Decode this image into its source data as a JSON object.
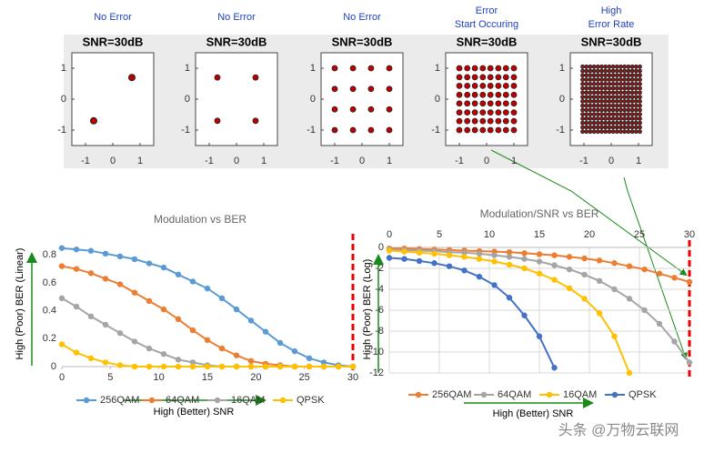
{
  "chart_data": [
    {
      "type": "scatter",
      "annotation": [
        "No Error"
      ],
      "title": "SNR=30dB",
      "x": [
        -0.7,
        0.7
      ],
      "y": [
        -0.7,
        0.7
      ],
      "color": "#c00000",
      "xlim": [
        -1.5,
        1.5
      ],
      "ylim": [
        -1.5,
        1.5
      ],
      "xticks": [
        -1,
        0,
        1
      ],
      "yticks": [
        -1,
        0,
        1
      ]
    },
    {
      "type": "constellation",
      "annotation": [
        "No Error"
      ],
      "title": "SNR=30dB",
      "levels": [
        -0.7,
        0.7
      ],
      "color": "#c00000",
      "xlim": [
        -1.5,
        1.5
      ],
      "ylim": [
        -1.5,
        1.5
      ],
      "xticks": [
        -1,
        0,
        1
      ],
      "yticks": [
        -1,
        0,
        1
      ]
    },
    {
      "type": "constellation",
      "annotation": [
        "No Error"
      ],
      "title": "SNR=30dB",
      "levels": [
        -1,
        -0.33,
        0.33,
        1
      ],
      "color": "#c00000",
      "xlim": [
        -1.5,
        1.5
      ],
      "ylim": [
        -1.5,
        1.5
      ],
      "xticks": [
        -1,
        0,
        1
      ],
      "yticks": [
        -1,
        0,
        1
      ]
    },
    {
      "type": "constellation",
      "annotation": [
        "Error",
        "Start Occuring"
      ],
      "title": "SNR=30dB",
      "levels": [
        -1,
        -0.71,
        -0.43,
        -0.14,
        0.14,
        0.43,
        0.71,
        1
      ],
      "color": "#c00000",
      "xlim": [
        -1.5,
        1.5
      ],
      "ylim": [
        -1.5,
        1.5
      ],
      "xticks": [
        -1,
        0,
        1
      ],
      "yticks": [
        -1,
        0,
        1
      ]
    },
    {
      "type": "constellation",
      "annotation": [
        "High",
        "Error Rate"
      ],
      "title": "SNR=30dB",
      "levels": [
        -1.05,
        -0.91,
        -0.77,
        -0.63,
        -0.49,
        -0.35,
        -0.21,
        -0.07,
        0.07,
        0.21,
        0.35,
        0.49,
        0.63,
        0.77,
        0.91,
        1.05
      ],
      "color": "#8b1a1a",
      "xlim": [
        -1.5,
        1.5
      ],
      "ylim": [
        -1.5,
        1.5
      ],
      "xticks": [
        -1,
        0,
        1
      ],
      "yticks": [
        -1,
        0,
        1
      ]
    },
    {
      "type": "line",
      "title": "Modulation vs BER",
      "ylabel": "High (Poor) BER (Linear)",
      "xlabel": "High (Better) SNR",
      "grid": false,
      "x": [
        0,
        1.5,
        3,
        4.5,
        6,
        7.5,
        9,
        10.5,
        12,
        13.5,
        15,
        16.5,
        18,
        19.5,
        21,
        22.5,
        24,
        25.5,
        27,
        28.5,
        30
      ],
      "xlim": [
        0,
        30
      ],
      "xticks": [
        0,
        5,
        10,
        15,
        20,
        25,
        30
      ],
      "ylim": [
        0,
        0.9
      ],
      "yticks": [
        0,
        0.2,
        0.4,
        0.6,
        0.8
      ],
      "series": [
        {
          "name": "256QAM",
          "color": "#5b9bd5",
          "values": [
            0.85,
            0.84,
            0.83,
            0.81,
            0.79,
            0.77,
            0.74,
            0.71,
            0.66,
            0.61,
            0.56,
            0.49,
            0.41,
            0.33,
            0.25,
            0.17,
            0.11,
            0.06,
            0.03,
            0.01,
            0
          ]
        },
        {
          "name": "64QAM",
          "color": "#ed7d31",
          "values": [
            0.72,
            0.7,
            0.67,
            0.63,
            0.59,
            0.53,
            0.47,
            0.41,
            0.34,
            0.26,
            0.19,
            0.13,
            0.08,
            0.04,
            0.02,
            0.01,
            0,
            0,
            0,
            0,
            0
          ]
        },
        {
          "name": "16QAM",
          "color": "#a5a5a5",
          "values": [
            0.49,
            0.43,
            0.36,
            0.3,
            0.24,
            0.18,
            0.13,
            0.09,
            0.05,
            0.03,
            0.01,
            0,
            0,
            0,
            0,
            0,
            0,
            0,
            0,
            0,
            0
          ]
        },
        {
          "name": "QPSK",
          "color": "#ffc000",
          "values": [
            0.16,
            0.1,
            0.06,
            0.03,
            0.01,
            0,
            0,
            0,
            0,
            0,
            0,
            0,
            0,
            0,
            0,
            0,
            0,
            0,
            0,
            0,
            0
          ]
        }
      ]
    },
    {
      "type": "line",
      "title": "Modulation/SNR vs BER",
      "ylabel": "High (Poor) BER (Log)",
      "xlabel": "High (Better) SNR",
      "grid": true,
      "xaxis_position": "top",
      "x": [
        0,
        1.5,
        3,
        4.5,
        6,
        7.5,
        9,
        10.5,
        12,
        13.5,
        15,
        16.5,
        18,
        19.5,
        21,
        22.5,
        24,
        25.5,
        27,
        28.5,
        30
      ],
      "xlim": [
        0,
        30
      ],
      "xticks": [
        0,
        5,
        10,
        15,
        20,
        25,
        30
      ],
      "ylim": [
        -12,
        0
      ],
      "yticks": [
        0,
        -2,
        -4,
        -6,
        -8,
        -10,
        -12
      ],
      "series": [
        {
          "name": "256QAM",
          "color": "#ed7d31",
          "values": [
            -0.1,
            -0.1,
            -0.15,
            -0.2,
            -0.25,
            -0.3,
            -0.35,
            -0.4,
            -0.45,
            -0.55,
            -0.65,
            -0.75,
            -0.9,
            -1.05,
            -1.25,
            -1.5,
            -1.8,
            -2.1,
            -2.5,
            -2.9,
            -3.3
          ]
        },
        {
          "name": "64QAM",
          "color": "#a5a5a5",
          "values": [
            -0.2,
            -0.25,
            -0.3,
            -0.35,
            -0.45,
            -0.5,
            -0.6,
            -0.75,
            -0.9,
            -1.1,
            -1.35,
            -1.7,
            -2.1,
            -2.6,
            -3.2,
            -4,
            -4.9,
            -6,
            -7.3,
            -9,
            -11
          ]
        },
        {
          "name": "16QAM",
          "color": "#ffc000",
          "values": [
            -0.3,
            -0.4,
            -0.5,
            -0.6,
            -0.75,
            -0.9,
            -1.1,
            -1.35,
            -1.65,
            -2,
            -2.5,
            -3.1,
            -3.9,
            -4.9,
            -6.3,
            -8.5,
            -12,
            null,
            null,
            null,
            null
          ]
        },
        {
          "name": "QPSK",
          "color": "#4472c4",
          "values": [
            -1,
            -1.1,
            -1.3,
            -1.5,
            -1.8,
            -2.2,
            -2.8,
            -3.6,
            -4.8,
            -6.5,
            -8.5,
            -11.5,
            null,
            null,
            null,
            null,
            null,
            null,
            null,
            null,
            null
          ]
        }
      ]
    }
  ],
  "watermark": "头条 @万物云联网"
}
